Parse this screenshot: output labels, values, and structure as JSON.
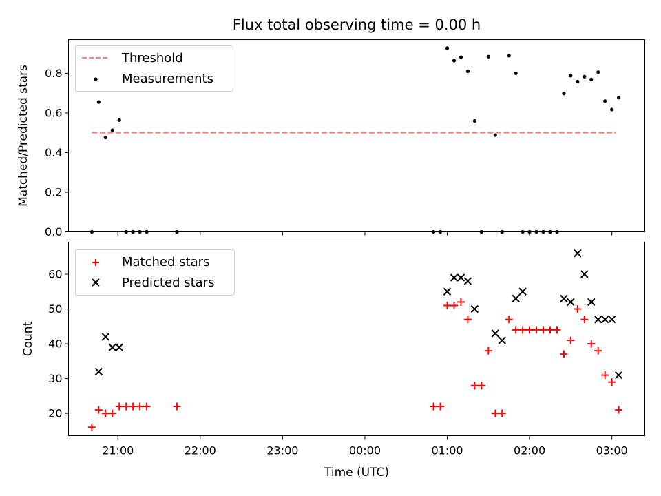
{
  "title": "Flux total observing time = 0.00 h",
  "xlabel": "Time (UTC)",
  "x_tick_labels": [
    "21:00",
    "22:00",
    "23:00",
    "00:00",
    "01:00",
    "02:00",
    "03:00"
  ],
  "colors": {
    "threshold": "#ff8080",
    "measurements": "#000000",
    "matched": "#ff0000",
    "predicted": "#000000"
  },
  "chart_data": [
    {
      "type": "scatter",
      "panel": "top",
      "ylabel": "Matched/Predicted stars",
      "ylim": [
        0,
        0.97
      ],
      "xlim": [
        "20:24",
        "03:24"
      ],
      "y_ticks": [
        0.0,
        0.2,
        0.4,
        0.6,
        0.8
      ],
      "y_tick_labels": [
        "0.0",
        "0.2",
        "0.4",
        "0.6",
        "0.8"
      ],
      "legend_placement": "top-left",
      "series": [
        {
          "name": "Threshold",
          "style": "dashed-line",
          "x": [
            "20:41",
            "03:03"
          ],
          "values": [
            0.5,
            0.5
          ]
        },
        {
          "name": "Measurements",
          "style": "dot",
          "x": [
            "20:41",
            "20:46",
            "20:51",
            "20:56",
            "21:01",
            "21:06",
            "21:11",
            "21:16",
            "21:21",
            "21:43",
            "00:50",
            "00:55",
            "01:00",
            "01:05",
            "01:10",
            "01:15",
            "01:20",
            "01:25",
            "01:30",
            "01:35",
            "01:40",
            "01:45",
            "01:50",
            "01:55",
            "02:00",
            "02:05",
            "02:10",
            "02:15",
            "02:20",
            "02:25",
            "02:30",
            "02:35",
            "02:40",
            "02:45",
            "02:50",
            "02:55",
            "03:00",
            "03:05"
          ],
          "values": [
            0.0,
            0.655,
            0.476,
            0.513,
            0.564,
            0.0,
            0.0,
            0.0,
            0.0,
            0.0,
            0.0,
            0.0,
            0.927,
            0.864,
            0.881,
            0.81,
            0.56,
            0.0,
            0.884,
            0.488,
            0.0,
            0.889,
            0.8,
            0.0,
            0.0,
            0.0,
            0.0,
            0.0,
            0.0,
            0.698,
            0.788,
            0.758,
            0.783,
            0.769,
            0.806,
            0.66,
            0.617,
            0.677
          ]
        }
      ]
    },
    {
      "type": "scatter",
      "panel": "bottom",
      "ylabel": "Count",
      "ylim": [
        13.6,
        69.2
      ],
      "xlim": [
        "20:24",
        "03:24"
      ],
      "y_ticks": [
        20,
        30,
        40,
        50,
        60
      ],
      "y_tick_labels": [
        "20",
        "30",
        "40",
        "50",
        "60"
      ],
      "legend_placement": "top-left",
      "series": [
        {
          "name": "Matched stars",
          "marker": "+",
          "x": [
            "20:41",
            "20:46",
            "20:51",
            "20:56",
            "21:01",
            "21:06",
            "21:11",
            "21:16",
            "21:21",
            "21:43",
            "00:50",
            "00:55",
            "01:00",
            "01:05",
            "01:10",
            "01:15",
            "01:20",
            "01:25",
            "01:30",
            "01:35",
            "01:40",
            "01:45",
            "01:50",
            "01:55",
            "02:00",
            "02:05",
            "02:10",
            "02:15",
            "02:20",
            "02:25",
            "02:30",
            "02:35",
            "02:40",
            "02:45",
            "02:50",
            "02:55",
            "03:00",
            "03:05"
          ],
          "values": [
            16,
            21,
            20,
            20,
            22,
            22,
            22,
            22,
            22,
            22,
            22,
            22,
            51,
            51,
            52,
            47,
            28,
            28,
            38,
            20,
            20,
            47,
            44,
            44,
            44,
            44,
            44,
            44,
            44,
            37,
            41,
            50,
            47,
            40,
            38,
            31,
            29,
            21
          ]
        },
        {
          "name": "Predicted stars",
          "marker": "x",
          "x": [
            "20:46",
            "20:51",
            "20:56",
            "21:01",
            "01:00",
            "01:05",
            "01:10",
            "01:15",
            "01:20",
            "01:35",
            "01:40",
            "01:50",
            "01:55",
            "02:25",
            "02:30",
            "02:35",
            "02:40",
            "02:45",
            "02:50",
            "02:55",
            "03:00",
            "03:05"
          ],
          "values": [
            32,
            42,
            39,
            39,
            55,
            59,
            59,
            58,
            50,
            43,
            41,
            53,
            55,
            53,
            52,
            66,
            60,
            52,
            47,
            47,
            47,
            31
          ]
        }
      ]
    }
  ]
}
